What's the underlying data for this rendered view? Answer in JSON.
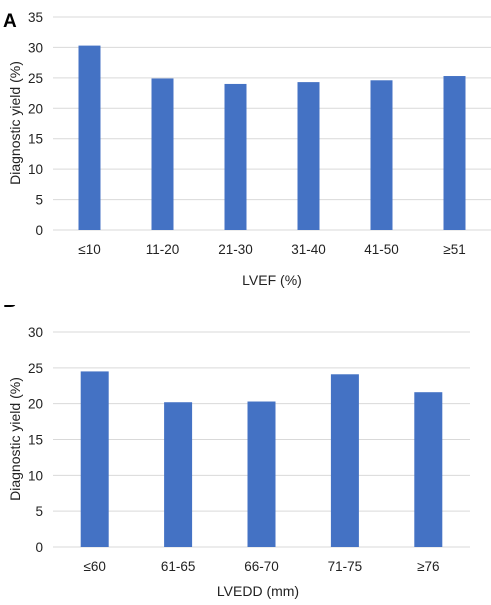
{
  "colors": {
    "bar": "#4472C4",
    "grid": "#d9d9d9",
    "text": "#222222"
  },
  "chart_data": [
    {
      "panel": "A",
      "type": "bar",
      "categories": [
        "≤10",
        "11-20",
        "21-30",
        "31-40",
        "41-50",
        "≥51"
      ],
      "values": [
        30.3,
        24.9,
        24.0,
        24.3,
        24.6,
        25.3
      ],
      "title": "",
      "xlabel": "LVEF (%)",
      "ylabel": "Diagnostic yield (%)",
      "ylim": [
        0,
        35
      ],
      "yticks": [
        "0",
        "5",
        "10",
        "15",
        "20",
        "25",
        "30",
        "35"
      ],
      "grid": true,
      "legend": "none"
    },
    {
      "panel": "B",
      "type": "bar",
      "categories": [
        "≤60",
        "61-65",
        "66-70",
        "71-75",
        "≥76"
      ],
      "values": [
        24.5,
        20.2,
        20.3,
        24.1,
        21.6
      ],
      "title": "",
      "xlabel": "LVEDD (mm)",
      "ylabel": "Diagnostic yield (%)",
      "ylim": [
        0,
        30
      ],
      "yticks": [
        "0",
        "5",
        "10",
        "15",
        "20",
        "25",
        "30"
      ],
      "grid": true,
      "legend": "none"
    }
  ]
}
